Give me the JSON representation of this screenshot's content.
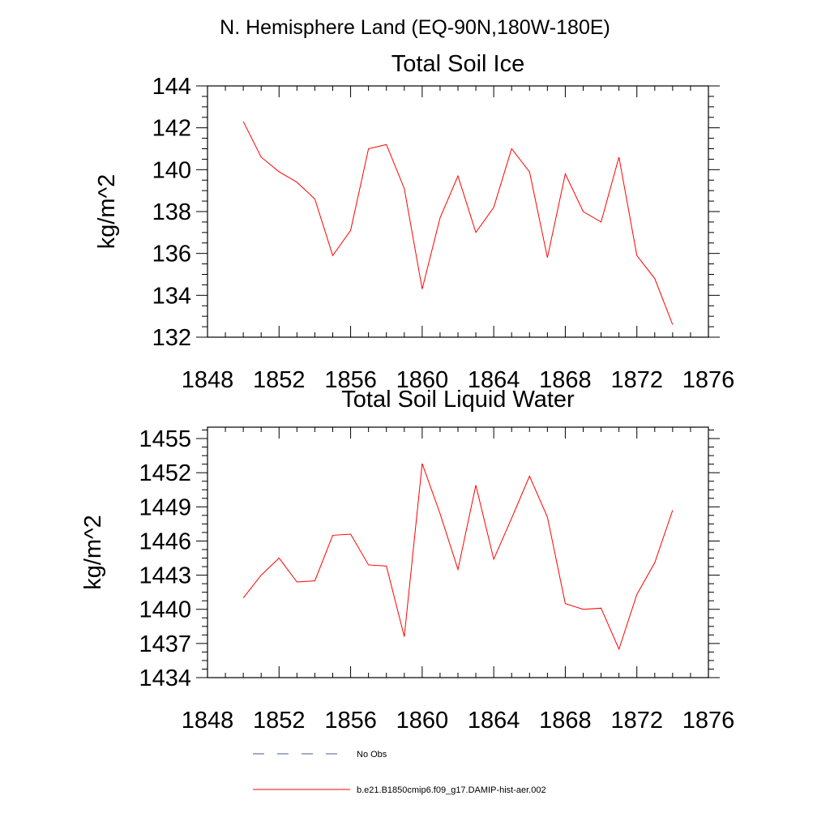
{
  "figure": {
    "title": "N. Hemisphere Land (EQ-90N,180W-180E)"
  },
  "colors": {
    "model_series": "#ff0000",
    "obs_series": "#4a5b8c",
    "axes": "#000000",
    "background": "#ffffff"
  },
  "chart_data": [
    {
      "type": "line",
      "title": "Total Soil Ice",
      "xlabel": "",
      "ylabel": "kg/m^2",
      "xlim": [
        1848,
        1876
      ],
      "ylim": [
        132,
        144
      ],
      "x_ticks": [
        1848,
        1852,
        1856,
        1860,
        1864,
        1868,
        1872,
        1876
      ],
      "y_ticks": [
        132,
        134,
        136,
        138,
        140,
        142,
        144
      ],
      "grid": false,
      "series": [
        {
          "name": "b.e21.B1850cmip6.f09_g17.DAMIP-hist-aer.002",
          "x": [
            1850,
            1851,
            1852,
            1853,
            1854,
            1855,
            1856,
            1857,
            1858,
            1859,
            1860,
            1861,
            1862,
            1863,
            1864,
            1865,
            1866,
            1867,
            1868,
            1869,
            1870,
            1871,
            1872,
            1873,
            1874
          ],
          "values": [
            142.3,
            140.6,
            139.9,
            139.4,
            138.6,
            135.9,
            137.1,
            141.0,
            141.2,
            139.1,
            134.3,
            137.7,
            139.7,
            137.0,
            138.2,
            141.0,
            139.9,
            135.8,
            139.8,
            138.0,
            137.5,
            140.6,
            135.9,
            134.8,
            132.6
          ]
        }
      ]
    },
    {
      "type": "line",
      "title": "Total Soil Liquid Water",
      "xlabel": "",
      "ylabel": "kg/m^2",
      "xlim": [
        1848,
        1876
      ],
      "ylim": [
        1434,
        1456
      ],
      "x_ticks": [
        1848,
        1852,
        1856,
        1860,
        1864,
        1868,
        1872,
        1876
      ],
      "y_ticks": [
        1434,
        1437,
        1440,
        1443,
        1446,
        1449,
        1452,
        1455
      ],
      "grid": false,
      "series": [
        {
          "name": "b.e21.B1850cmip6.f09_g17.DAMIP-hist-aer.002",
          "x": [
            1850,
            1851,
            1852,
            1853,
            1854,
            1855,
            1856,
            1857,
            1858,
            1859,
            1860,
            1861,
            1862,
            1863,
            1864,
            1865,
            1866,
            1867,
            1868,
            1869,
            1870,
            1871,
            1872,
            1873,
            1874
          ],
          "values": [
            1441.0,
            1443.0,
            1444.5,
            1442.4,
            1442.5,
            1446.5,
            1446.6,
            1443.9,
            1443.8,
            1437.6,
            1452.8,
            1448.4,
            1443.5,
            1450.9,
            1444.4,
            1448.0,
            1451.7,
            1448.1,
            1440.5,
            1440.0,
            1440.1,
            1436.5,
            1441.3,
            1444.1,
            1448.7
          ]
        }
      ]
    }
  ],
  "legend": {
    "placement": "bottom-center",
    "entries": [
      {
        "label": "No Obs",
        "style": "dashed",
        "color": "#4a5b8c"
      },
      {
        "label": "b.e21.B1850cmip6.f09_g17.DAMIP-hist-aer.002",
        "style": "solid",
        "color": "#ff0000"
      }
    ]
  }
}
